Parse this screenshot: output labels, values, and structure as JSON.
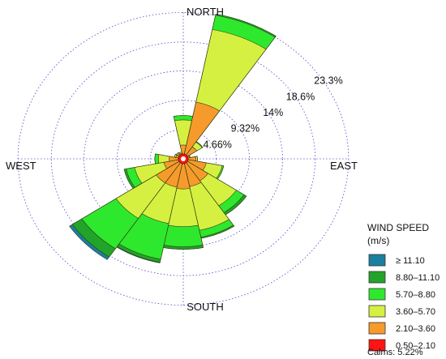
{
  "chart_data": {
    "type": "wind-rose",
    "direction_labels": {
      "north": "NORTH",
      "south": "SOUTH",
      "east": "EAST",
      "west": "WEST"
    },
    "ring_values_pct": [
      4.66,
      9.32,
      14,
      18.6,
      23.3
    ],
    "ring_labels": [
      "4.66%",
      "9.32%",
      "14%",
      "18.6%",
      "23.3%"
    ],
    "legend": {
      "title_line1": "WIND SPEED",
      "title_line2": "(m/s)",
      "bins": [
        {
          "label": "≥ 11.10",
          "color": "#1b7fa0"
        },
        {
          "label": "8.80–11.10",
          "color": "#22a32a"
        },
        {
          "label": "5.70–8.80",
          "color": "#2ee82e"
        },
        {
          "label": "3.60–5.70",
          "color": "#d6f042"
        },
        {
          "label": "2.10–3.60",
          "color": "#f79a2c"
        },
        {
          "label": "0.50–2.10",
          "color": "#ff1414"
        }
      ]
    },
    "calms": "Calms: 5.22%",
    "sector_width_deg": 22.5,
    "sectors": [
      {
        "dir": "N",
        "cumulative_pct": [
          0.3,
          2.2,
          6.2,
          6.9,
          6.9,
          6.9
        ]
      },
      {
        "dir": "NNE",
        "cumulative_pct": [
          0.3,
          9.2,
          21.0,
          23.3,
          23.5,
          23.5
        ]
      },
      {
        "dir": "NE",
        "cumulative_pct": [
          0.3,
          2.3,
          3.2,
          3.3,
          3.3,
          3.3
        ]
      },
      {
        "dir": "ENE",
        "cumulative_pct": [
          0.3,
          0.9,
          1.0,
          1.0,
          1.0,
          1.0
        ]
      },
      {
        "dir": "E",
        "cumulative_pct": [
          0.3,
          1.8,
          2.0,
          2.0,
          2.0,
          2.0
        ]
      },
      {
        "dir": "ESE",
        "cumulative_pct": [
          0.3,
          3.3,
          5.6,
          5.8,
          5.8,
          5.8
        ]
      },
      {
        "dir": "SE",
        "cumulative_pct": [
          0.3,
          4.2,
          9.0,
          10.3,
          10.7,
          10.7
        ]
      },
      {
        "dir": "SSE",
        "cumulative_pct": [
          0.3,
          4.5,
          11.6,
          12.7,
          12.9,
          12.9
        ]
      },
      {
        "dir": "S",
        "cumulative_pct": [
          0.3,
          4.8,
          10.8,
          14.0,
          14.4,
          14.4
        ]
      },
      {
        "dir": "SSW",
        "cumulative_pct": [
          0.3,
          4.6,
          10.5,
          16.3,
          16.8,
          16.9
        ]
      },
      {
        "dir": "SW",
        "cumulative_pct": [
          0.3,
          4.6,
          11.4,
          17.2,
          18.8,
          19.3
        ]
      },
      {
        "dir": "WSW",
        "cumulative_pct": [
          0.3,
          2.8,
          7.0,
          8.2,
          8.5,
          8.5
        ]
      },
      {
        "dir": "W",
        "cumulative_pct": [
          0.3,
          2.0,
          3.5,
          4.0,
          4.0,
          4.0
        ]
      },
      {
        "dir": "WNW",
        "cumulative_pct": [
          0.3,
          1.1,
          1.3,
          1.3,
          1.3,
          1.3
        ]
      },
      {
        "dir": "NW",
        "cumulative_pct": [
          0.3,
          1.0,
          1.2,
          1.2,
          1.2,
          1.2
        ]
      },
      {
        "dir": "NNW",
        "cumulative_pct": [
          0.3,
          0.9,
          1.1,
          1.1,
          1.1,
          1.1
        ]
      }
    ]
  }
}
